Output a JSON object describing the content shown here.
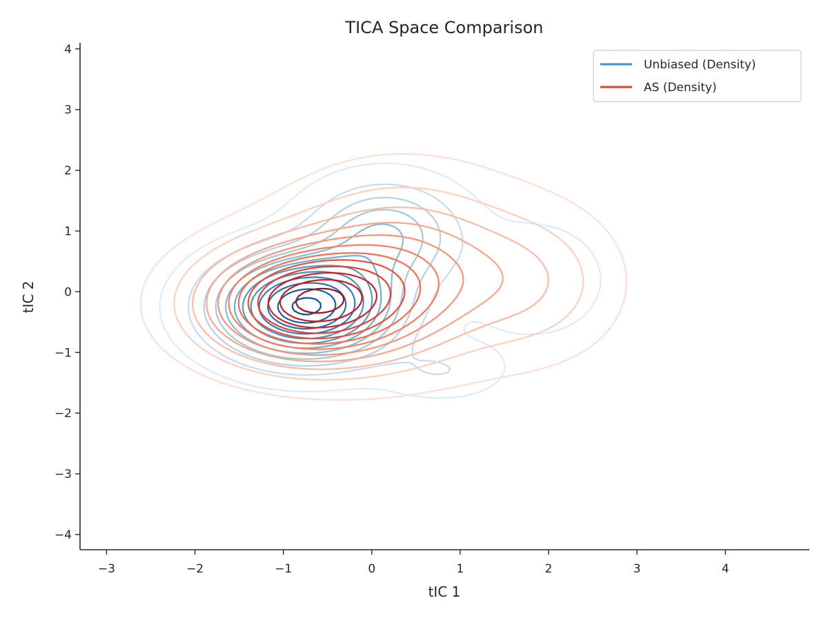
{
  "chart_data": {
    "type": "contour",
    "title": "TICA Space Comparison",
    "xlabel": "tIC 1",
    "ylabel": "tIC 2",
    "xlim": [
      -3.3,
      4.95
    ],
    "ylim": [
      -4.25,
      4.1
    ],
    "xticks": [
      -3,
      -2,
      -1,
      0,
      1,
      2,
      3,
      4
    ],
    "yticks": [
      -4,
      -3,
      -2,
      -1,
      0,
      1,
      2,
      3,
      4
    ],
    "xtick_labels": [
      "−3",
      "−2",
      "−1",
      "0",
      "1",
      "2",
      "3",
      "4"
    ],
    "ytick_labels": [
      "−4",
      "−3",
      "−2",
      "−1",
      "0",
      "1",
      "2",
      "3",
      "4"
    ],
    "grid": false,
    "legend_position": "top-right",
    "series": [
      {
        "name": "Unbiased (Density)",
        "legend_color": "#4292c6",
        "colormap": "Blues",
        "peak": [
          -0.75,
          -0.25
        ],
        "levels": 12,
        "level_colors": [
          "#deebf7",
          "#c6dbef",
          "#b2d2e8",
          "#9ecae1",
          "#84bcdb",
          "#6baed6",
          "#519ccc",
          "#4292c6",
          "#2f7ebc",
          "#2171b5",
          "#1361a9",
          "#08519c"
        ],
        "components": [
          {
            "mx": -0.75,
            "my": -0.25,
            "sx": 0.65,
            "sy": 0.55,
            "w": 1.0
          },
          {
            "mx": 0.15,
            "my": 0.95,
            "sx": 0.55,
            "sy": 0.55,
            "w": 0.38
          },
          {
            "mx": 1.85,
            "my": 0.2,
            "sx": 0.5,
            "sy": 0.6,
            "w": 0.12
          },
          {
            "mx": 0.8,
            "my": -1.3,
            "sx": 0.45,
            "sy": 0.3,
            "w": 0.12
          }
        ]
      },
      {
        "name": "AS (Density)",
        "legend_color": "#ef3b2c",
        "colormap": "Reds",
        "peak": [
          -0.75,
          -0.2
        ],
        "levels": 12,
        "level_colors": [
          "#fee0d2",
          "#fdd0bc",
          "#fcbba1",
          "#fca588",
          "#fc9272",
          "#fb7d5d",
          "#fb6a4a",
          "#f14e39",
          "#ef3b2c",
          "#d52221",
          "#cb181d",
          "#a50f15"
        ],
        "components": [
          {
            "mx": -0.75,
            "my": -0.2,
            "sx": 0.75,
            "sy": 0.6,
            "w": 1.0
          },
          {
            "mx": 0.35,
            "my": 0.35,
            "sx": 0.85,
            "sy": 0.9,
            "w": 0.45
          },
          {
            "mx": 1.85,
            "my": 0.15,
            "sx": 0.6,
            "sy": 0.75,
            "w": 0.18
          }
        ]
      }
    ]
  }
}
